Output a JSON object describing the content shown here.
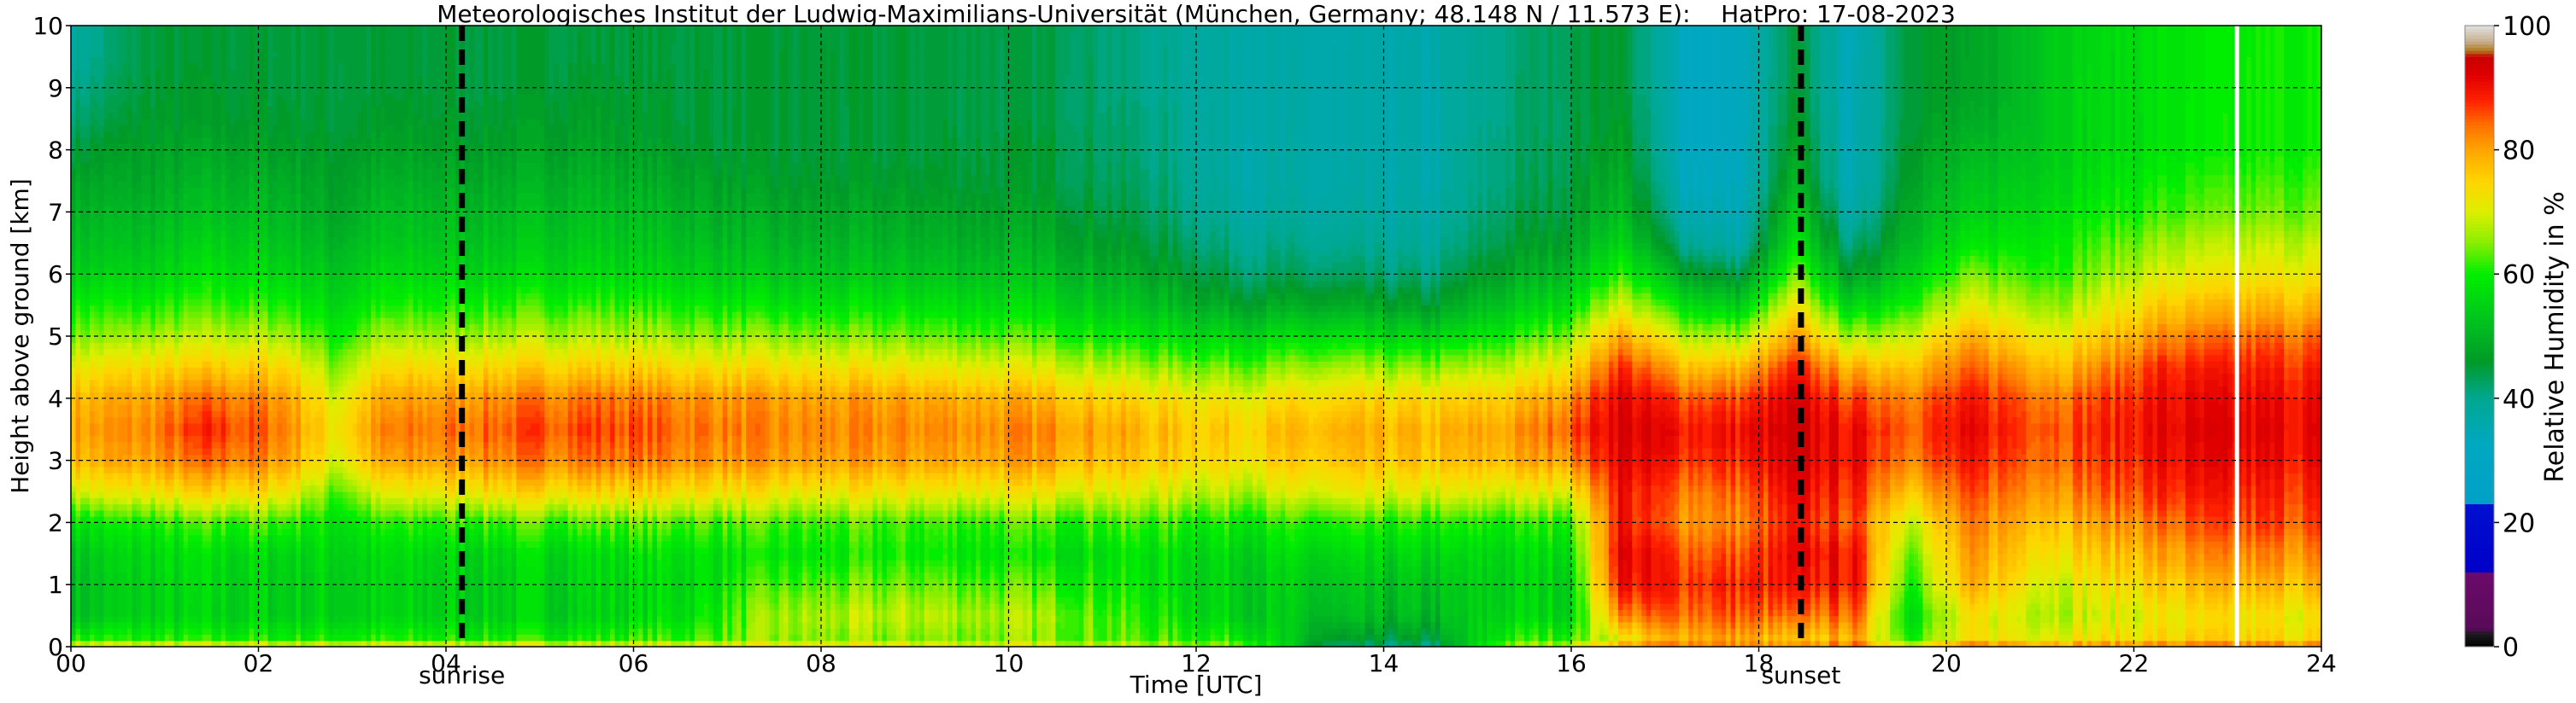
{
  "chart_data": {
    "type": "heatmap",
    "title": "Meteorologisches Institut der Ludwig-Maximilians-Universität (München, Germany; 48.148 N / 11.573 E):    HatPro: 17-08-2023",
    "xlabel": "Time [UTC]",
    "ylabel": "Height above ground [km]",
    "xlim": [
      0,
      24
    ],
    "ylim": [
      0,
      10
    ],
    "x_ticks": [
      "00",
      "02",
      "04",
      "06",
      "08",
      "10",
      "12",
      "14",
      "16",
      "18",
      "20",
      "22",
      "24"
    ],
    "y_ticks": [
      "0",
      "1",
      "2",
      "3",
      "4",
      "5",
      "6",
      "7",
      "8",
      "9",
      "10"
    ],
    "grid": true,
    "colorbar": {
      "label": "Relative Humidity in %",
      "ticks": [
        "0",
        "20",
        "40",
        "60",
        "80",
        "100"
      ],
      "range": [
        0,
        100
      ]
    },
    "annotations": [
      {
        "label": "sunrise",
        "time": 4.17
      },
      {
        "label": "sunset",
        "time": 18.45
      }
    ],
    "missing_data_time": 23.1,
    "profile_heights_km": [
      0,
      0.15,
      0.5,
      1.0,
      1.5,
      2.0,
      2.5,
      3.0,
      3.5,
      4.0,
      4.5,
      5.0,
      5.5,
      6.0,
      6.5,
      7.0,
      7.5,
      8.0,
      8.5,
      9.0,
      9.5,
      10.0
    ],
    "profiles": [
      {
        "time": 0.0,
        "rh": [
          72,
          60,
          52,
          52,
          53,
          58,
          70,
          78,
          80,
          78,
          72,
          65,
          60,
          55,
          52,
          50,
          48,
          45,
          42,
          40,
          38,
          38
        ]
      },
      {
        "time": 0.8,
        "rh": [
          72,
          60,
          55,
          55,
          56,
          60,
          72,
          80,
          82,
          80,
          74,
          66,
          60,
          55,
          52,
          50,
          48,
          47,
          46,
          45,
          45,
          45
        ]
      },
      {
        "time": 1.5,
        "rh": [
          72,
          60,
          55,
          56,
          57,
          62,
          75,
          84,
          88,
          84,
          76,
          68,
          62,
          58,
          55,
          52,
          50,
          48,
          46,
          46,
          45,
          45
        ]
      },
      {
        "time": 2.3,
        "rh": [
          72,
          60,
          55,
          55,
          56,
          62,
          73,
          81,
          83,
          81,
          75,
          67,
          61,
          56,
          53,
          51,
          49,
          47,
          46,
          45,
          45,
          45
        ]
      },
      {
        "time": 2.8,
        "rh": [
          72,
          60,
          55,
          55,
          56,
          58,
          63,
          70,
          73,
          70,
          65,
          60,
          56,
          53,
          50,
          48,
          47,
          46,
          45,
          45,
          45,
          45
        ]
      },
      {
        "time": 3.3,
        "rh": [
          72,
          60,
          55,
          55,
          56,
          60,
          70,
          79,
          82,
          79,
          73,
          66,
          60,
          56,
          53,
          51,
          49,
          47,
          46,
          45,
          45,
          45
        ]
      },
      {
        "time": 4.5,
        "rh": [
          72,
          60,
          55,
          55,
          56,
          62,
          74,
          82,
          85,
          82,
          75,
          67,
          61,
          56,
          53,
          51,
          49,
          47,
          46,
          45,
          45,
          45
        ]
      },
      {
        "time": 5.5,
        "rh": [
          72,
          60,
          55,
          56,
          57,
          63,
          75,
          84,
          87,
          84,
          76,
          68,
          62,
          57,
          54,
          52,
          50,
          48,
          47,
          46,
          45,
          45
        ]
      },
      {
        "time": 6.6,
        "rh": [
          72,
          62,
          58,
          57,
          58,
          63,
          74,
          82,
          84,
          82,
          74,
          66,
          60,
          55,
          52,
          50,
          48,
          46,
          45,
          45,
          45,
          45
        ]
      },
      {
        "time": 7.5,
        "rh": [
          72,
          65,
          66,
          62,
          58,
          62,
          72,
          80,
          82,
          80,
          73,
          65,
          58,
          53,
          50,
          48,
          46,
          45,
          45,
          45,
          45,
          45
        ]
      },
      {
        "time": 9.0,
        "rh": [
          72,
          65,
          68,
          64,
          60,
          62,
          72,
          80,
          82,
          80,
          72,
          64,
          58,
          53,
          50,
          48,
          46,
          45,
          45,
          45,
          45,
          45
        ]
      },
      {
        "time": 10.5,
        "rh": [
          70,
          65,
          66,
          62,
          58,
          62,
          72,
          80,
          82,
          78,
          70,
          62,
          56,
          52,
          49,
          47,
          45,
          45,
          44,
          44,
          44,
          44
        ]
      },
      {
        "time": 11.5,
        "rh": [
          68,
          62,
          60,
          58,
          58,
          62,
          70,
          76,
          78,
          74,
          66,
          58,
          52,
          48,
          45,
          43,
          42,
          41,
          41,
          40,
          40,
          40
        ]
      },
      {
        "time": 12.5,
        "rh": [
          66,
          60,
          55,
          55,
          56,
          60,
          68,
          74,
          76,
          72,
          64,
          56,
          48,
          43,
          40,
          38,
          37,
          37,
          37,
          37,
          37,
          37
        ]
      },
      {
        "time": 13.5,
        "rh": [
          40,
          45,
          50,
          52,
          55,
          60,
          70,
          76,
          78,
          74,
          66,
          57,
          48,
          42,
          39,
          37,
          36,
          36,
          36,
          36,
          36,
          36
        ]
      },
      {
        "time": 14.5,
        "rh": [
          40,
          45,
          50,
          52,
          55,
          60,
          70,
          76,
          78,
          74,
          65,
          55,
          46,
          41,
          38,
          37,
          36,
          36,
          36,
          36,
          36,
          36
        ]
      },
      {
        "time": 15.3,
        "rh": [
          66,
          60,
          56,
          55,
          56,
          60,
          70,
          78,
          80,
          76,
          68,
          60,
          53,
          48,
          45,
          43,
          42,
          42,
          41,
          41,
          41,
          41
        ]
      },
      {
        "time": 16.0,
        "rh": [
          70,
          62,
          56,
          56,
          58,
          62,
          72,
          82,
          86,
          82,
          74,
          66,
          58,
          52,
          48,
          46,
          45,
          44,
          44,
          44,
          44,
          44
        ]
      },
      {
        "time": 16.5,
        "rh": [
          80,
          72,
          82,
          90,
          92,
          90,
          90,
          92,
          93,
          92,
          88,
          80,
          70,
          62,
          56,
          52,
          50,
          48,
          47,
          46,
          46,
          46
        ]
      },
      {
        "time": 17.2,
        "rh": [
          85,
          80,
          85,
          88,
          86,
          82,
          84,
          88,
          90,
          86,
          78,
          68,
          58,
          48,
          40,
          36,
          34,
          33,
          33,
          33,
          33,
          33
        ]
      },
      {
        "time": 17.8,
        "rh": [
          82,
          80,
          85,
          88,
          85,
          82,
          84,
          88,
          90,
          86,
          78,
          66,
          54,
          44,
          36,
          34,
          33,
          33,
          33,
          33,
          33,
          33
        ]
      },
      {
        "time": 18.4,
        "rh": [
          80,
          75,
          82,
          88,
          90,
          88,
          90,
          92,
          93,
          92,
          88,
          80,
          72,
          64,
          58,
          54,
          50,
          48,
          46,
          45,
          45,
          45
        ]
      },
      {
        "time": 19.0,
        "rh": [
          85,
          80,
          85,
          90,
          90,
          86,
          88,
          90,
          90,
          86,
          78,
          66,
          55,
          46,
          40,
          36,
          34,
          34,
          34,
          34,
          34,
          34
        ]
      },
      {
        "time": 19.6,
        "rh": [
          72,
          62,
          58,
          62,
          65,
          70,
          78,
          84,
          86,
          84,
          78,
          70,
          62,
          56,
          52,
          50,
          48,
          47,
          46,
          46,
          46,
          46
        ]
      },
      {
        "time": 20.3,
        "rh": [
          84,
          72,
          72,
          78,
          80,
          82,
          85,
          88,
          90,
          88,
          84,
          78,
          70,
          64,
          58,
          54,
          52,
          50,
          48,
          47,
          47,
          47
        ]
      },
      {
        "time": 21.2,
        "rh": [
          82,
          72,
          68,
          70,
          74,
          78,
          82,
          85,
          86,
          84,
          78,
          72,
          66,
          62,
          60,
          58,
          56,
          55,
          55,
          55,
          55,
          55
        ]
      },
      {
        "time": 22.3,
        "rh": [
          84,
          74,
          72,
          76,
          80,
          84,
          88,
          90,
          91,
          90,
          88,
          82,
          76,
          70,
          66,
          62,
          60,
          58,
          58,
          58,
          58,
          58
        ]
      },
      {
        "time": 23.4,
        "rh": [
          84,
          74,
          72,
          78,
          82,
          86,
          88,
          90,
          91,
          90,
          88,
          84,
          78,
          72,
          68,
          64,
          62,
          60,
          60,
          60,
          60,
          60
        ]
      },
      {
        "time": 24.0,
        "rh": [
          84,
          74,
          72,
          78,
          82,
          86,
          88,
          90,
          91,
          90,
          88,
          84,
          78,
          72,
          68,
          64,
          62,
          60,
          60,
          60,
          60,
          60
        ]
      }
    ],
    "colormap_stops": [
      {
        "value": 0,
        "color": "#000000"
      },
      {
        "value": 2,
        "color": "#1a1a1a"
      },
      {
        "value": 3,
        "color": "#5a0a5a"
      },
      {
        "value": 12,
        "color": "#6b0a6b"
      },
      {
        "value": 12.1,
        "color": "#0000c8"
      },
      {
        "value": 23,
        "color": "#0010d0"
      },
      {
        "value": 23.1,
        "color": "#00a0c8"
      },
      {
        "value": 33,
        "color": "#00a8c0"
      },
      {
        "value": 40,
        "color": "#00a890"
      },
      {
        "value": 46,
        "color": "#009a28"
      },
      {
        "value": 52,
        "color": "#00c020"
      },
      {
        "value": 60,
        "color": "#00ee00"
      },
      {
        "value": 65,
        "color": "#88ee00"
      },
      {
        "value": 70,
        "color": "#ddee00"
      },
      {
        "value": 75,
        "color": "#ffd500"
      },
      {
        "value": 80,
        "color": "#ffa500"
      },
      {
        "value": 84,
        "color": "#ff7000"
      },
      {
        "value": 88,
        "color": "#ff2000"
      },
      {
        "value": 92,
        "color": "#e00000"
      },
      {
        "value": 95,
        "color": "#c80000"
      },
      {
        "value": 96,
        "color": "#b07a20"
      },
      {
        "value": 97.5,
        "color": "#c8b090"
      },
      {
        "value": 100,
        "color": "#e0e0e0"
      }
    ]
  }
}
